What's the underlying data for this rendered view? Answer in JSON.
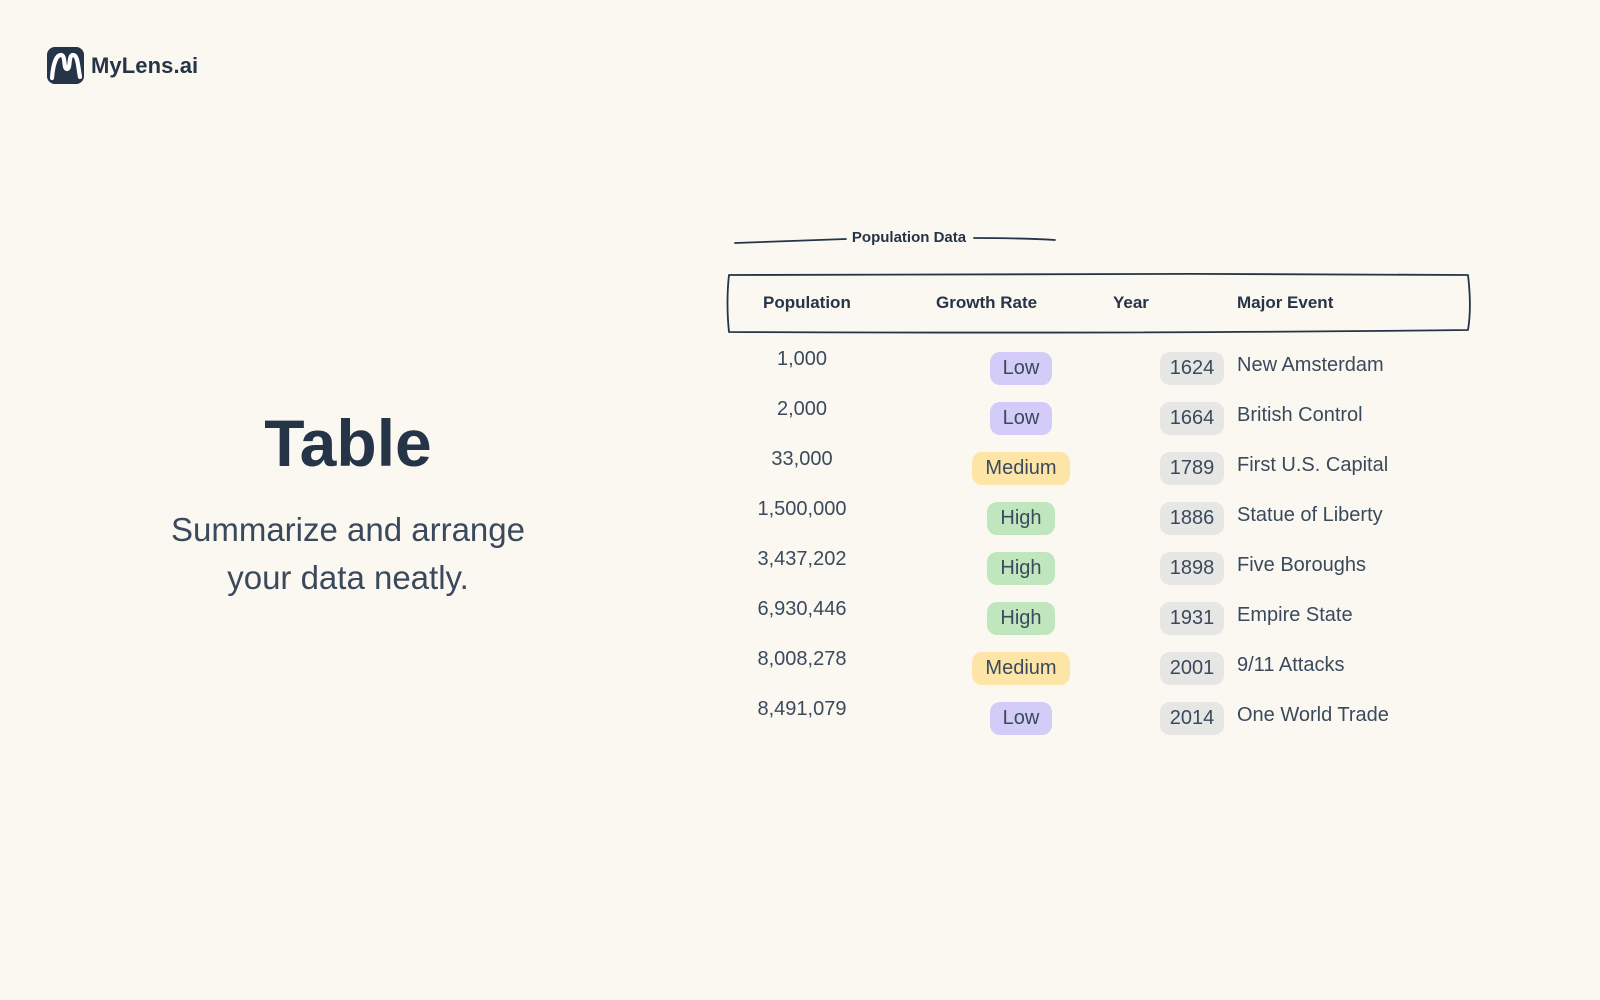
{
  "brand": {
    "name": "MyLens.ai",
    "logo_icon": "mylens-logo-icon"
  },
  "hero": {
    "title": "Table",
    "subtitle_line1": "Summarize and arrange",
    "subtitle_line2": "your data neatly."
  },
  "table": {
    "caption": "Population Data",
    "headers": {
      "population": "Population",
      "growth_rate": "Growth Rate",
      "year": "Year",
      "major_event": "Major Event"
    },
    "rows": [
      {
        "population": "1,000",
        "growth": "Low",
        "year": "1624",
        "event": "New Amsterdam"
      },
      {
        "population": "2,000",
        "growth": "Low",
        "year": "1664",
        "event": "British Control"
      },
      {
        "population": "33,000",
        "growth": "Medium",
        "year": "1789",
        "event": "First U.S. Capital"
      },
      {
        "population": "1,500,000",
        "growth": "High",
        "year": "1886",
        "event": "Statue of Liberty"
      },
      {
        "population": "3,437,202",
        "growth": "High",
        "year": "1898",
        "event": "Five Boroughs"
      },
      {
        "population": "6,930,446",
        "growth": "High",
        "year": "1931",
        "event": "Empire State"
      },
      {
        "population": "8,008,278",
        "growth": "Medium",
        "year": "2001",
        "event": "9/11 Attacks"
      },
      {
        "population": "8,491,079",
        "growth": "Low",
        "year": "2014",
        "event": "One World Trade"
      }
    ]
  },
  "colors": {
    "background": "#fbf8f1",
    "ink": "#253446",
    "badge_low": "#d3cbf8",
    "badge_medium": "#fde5a8",
    "badge_high": "#bfe6bc",
    "badge_year": "#e6e6e4"
  }
}
